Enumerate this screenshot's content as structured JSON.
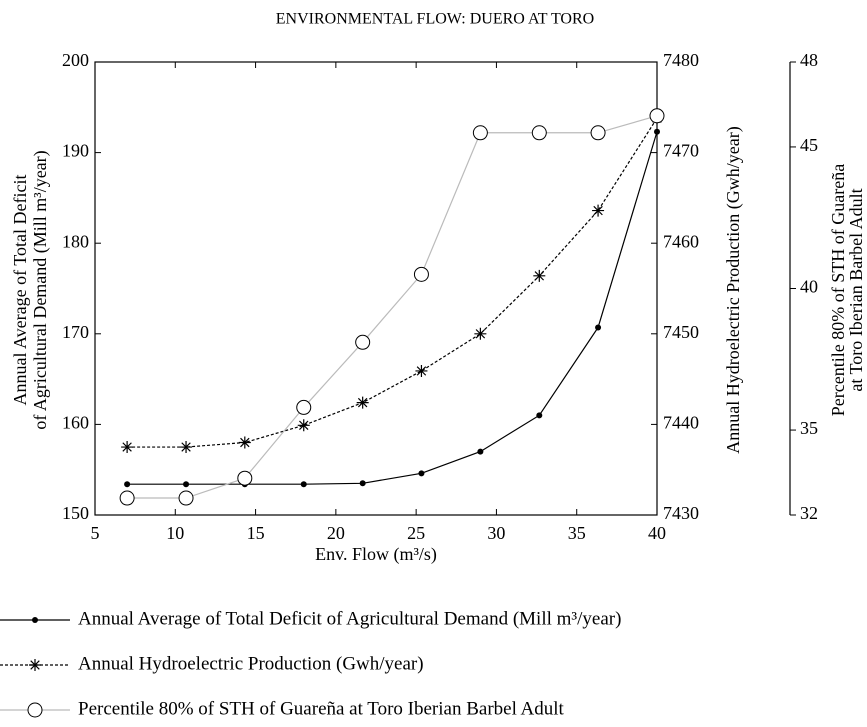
{
  "chart_data": {
    "type": "line",
    "title": "ENVIRONMENTAL FLOW: DUERO AT TORO",
    "x_label": "Env. Flow (m³/s)",
    "y_label": [
      "Annual Average of Total Deficit",
      "of Agricultural Demand  (Mill m³/year)"
    ],
    "y2_label": "Annual Hydroelectric Production (Gwh/year)",
    "y3_label": [
      "Percentile 80% of STH of Guareña",
      "at Toro Iberian Barbel Adult"
    ],
    "x": [
      7,
      10.67,
      14.33,
      18,
      21.67,
      25.33,
      29,
      32.67,
      36.33,
      40
    ],
    "xlim": [
      5,
      40
    ],
    "xticks": [
      5,
      10,
      15,
      20,
      25,
      30,
      35,
      40
    ],
    "ylim": [
      150,
      200
    ],
    "yticks": [
      150,
      160,
      170,
      180,
      190,
      200
    ],
    "y2lim": [
      7430,
      7480
    ],
    "y2ticks": [
      7430,
      7440,
      7450,
      7460,
      7470,
      7480
    ],
    "y3lim": [
      32,
      48
    ],
    "y3ticks": [
      32,
      35,
      40,
      45,
      48
    ],
    "series": [
      {
        "name": "Annual Average of Total Deficit of Agricultural Demand  (Mill m³/year)",
        "color": "#000000",
        "marker": "dot",
        "dash": "solid",
        "axis": "y",
        "values": [
          153.4,
          153.4,
          153.4,
          153.4,
          153.5,
          154.6,
          157.0,
          161.0,
          170.7,
          192.3
        ]
      },
      {
        "name": "Annual Hydroelectric Production  (Gwh/year)",
        "color": "#000000",
        "marker": "star",
        "dash": "dashed",
        "axis": "y2",
        "values": [
          7437.5,
          7437.5,
          7438.0,
          7439.9,
          7442.4,
          7445.9,
          7450.0,
          7456.4,
          7463.6,
          7473.8
        ]
      },
      {
        "name": "Percentile 80% of STH of Guareña at Toro Iberian Barbel Adult",
        "color": "#bbbbbb",
        "marker": "circle",
        "dash": "solid",
        "axis": "y3",
        "values": [
          32.6,
          32.6,
          33.3,
          35.8,
          38.1,
          40.5,
          45.5,
          45.5,
          45.5,
          46.1
        ]
      }
    ]
  }
}
